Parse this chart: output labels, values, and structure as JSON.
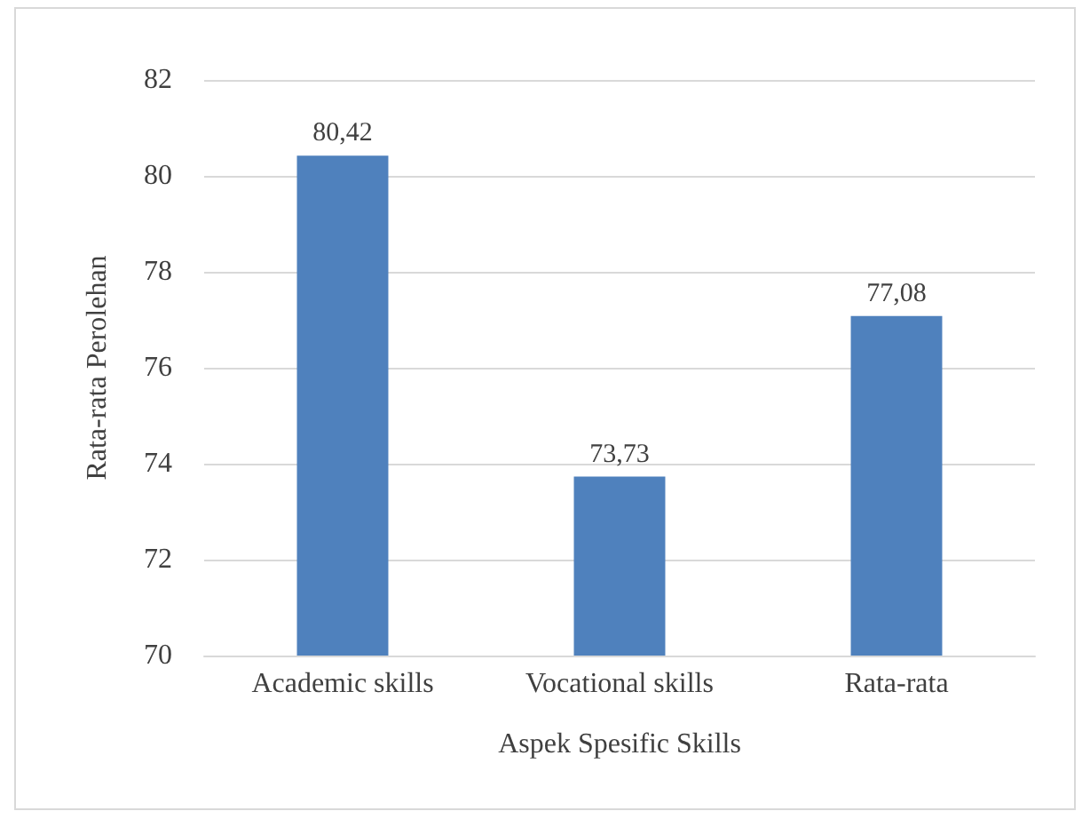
{
  "chart_data": {
    "type": "bar",
    "xlabel": "Aspek Spesific Skills",
    "ylabel": "Rata-rata Perolehan",
    "categories": [
      "Academic skills",
      "Vocational skills",
      "Rata-rata"
    ],
    "values": [
      80.42,
      73.73,
      77.08
    ],
    "color": "#4f81bd",
    "value_labels": [
      "80,42",
      "73,73",
      "77,08"
    ],
    "ylim": [
      70,
      82
    ],
    "yticks": [
      70,
      72,
      74,
      76,
      78,
      80,
      82
    ],
    "grid": "y"
  }
}
